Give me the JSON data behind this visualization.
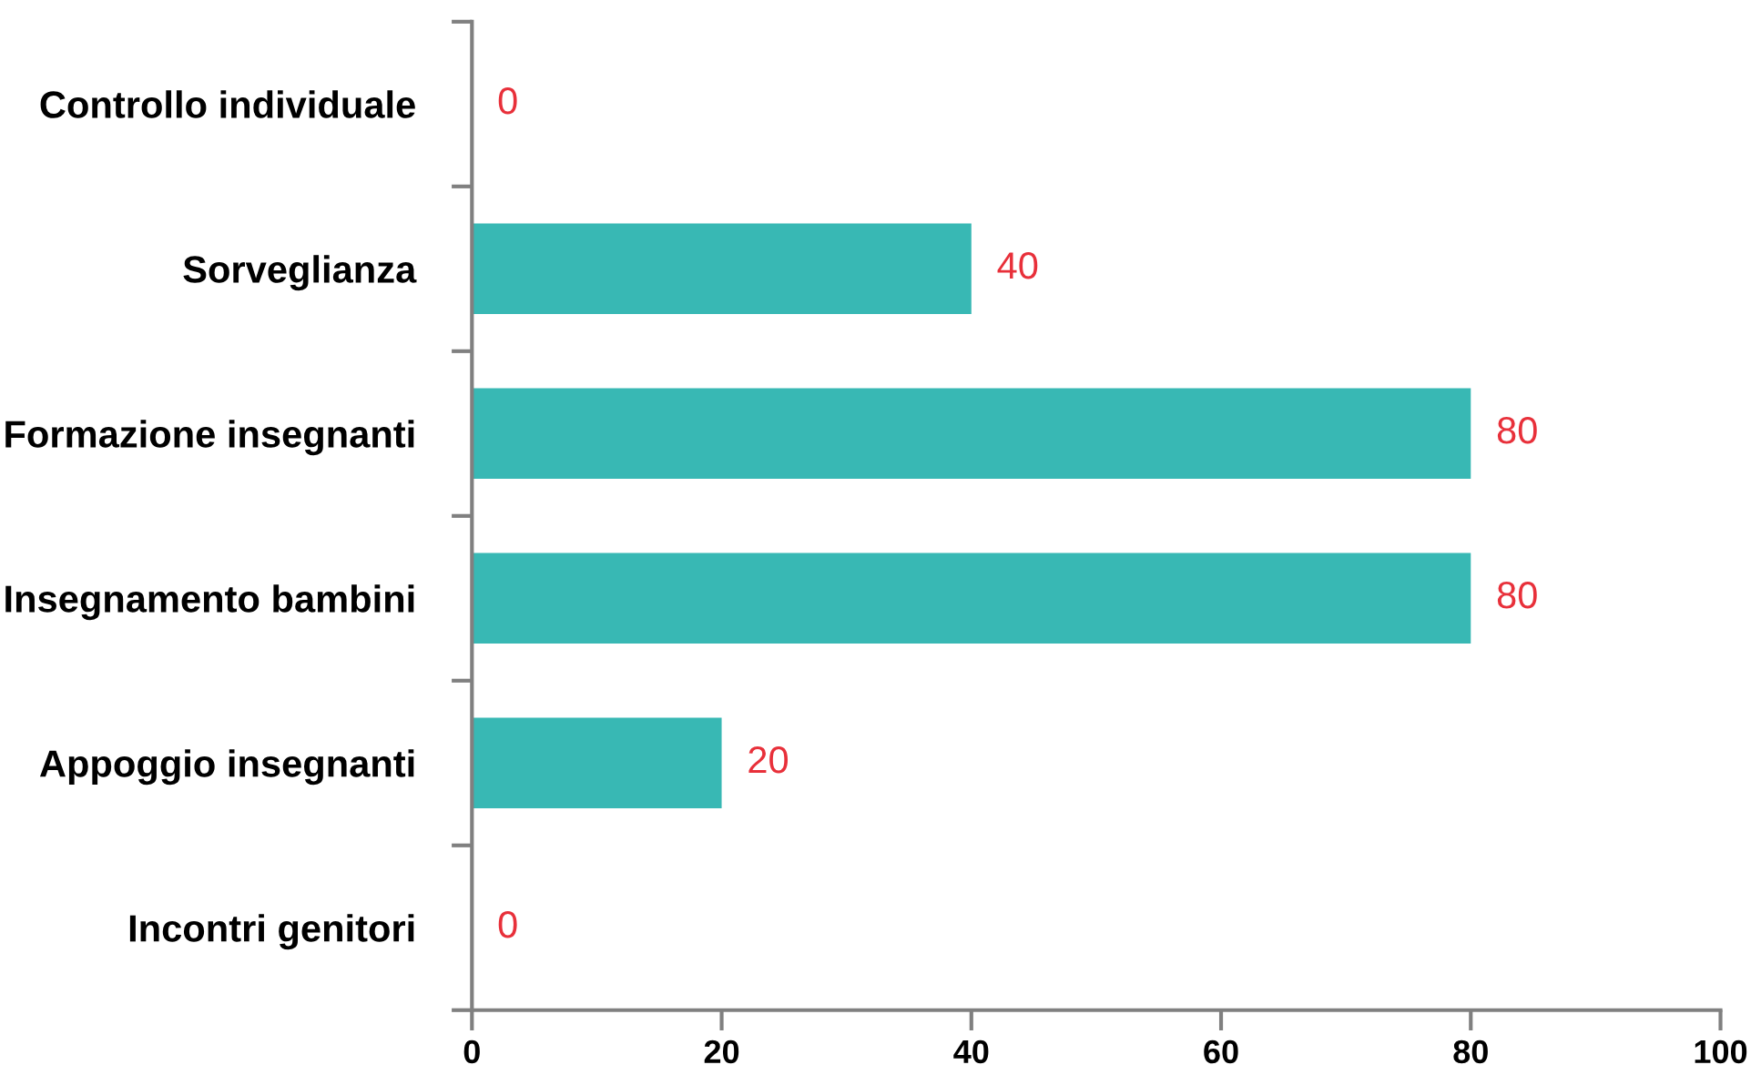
{
  "chart_data": {
    "type": "bar",
    "orientation": "horizontal",
    "categories": [
      "Controllo individuale",
      "Sorveglianza",
      "Formazione insegnanti",
      "Insegnamento bambini",
      "Appoggio insegnanti",
      "Incontri genitori"
    ],
    "values": [
      0,
      40,
      80,
      80,
      20,
      0
    ],
    "color": "#38b8b4",
    "data_labels": true,
    "xlim": [
      0,
      100
    ],
    "xticks": [
      0,
      20,
      40,
      60,
      80,
      100
    ],
    "grid": false,
    "legend": false
  }
}
